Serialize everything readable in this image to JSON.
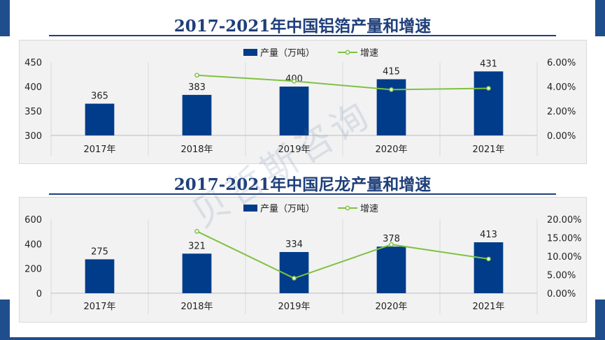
{
  "watermark": "贝哲斯咨询",
  "charts": [
    {
      "title": "2017-2021年中国铝箔产量和增速",
      "chart_data": {
        "type": "bar",
        "categories": [
          "2017年",
          "2018年",
          "2019年",
          "2020年",
          "2021年"
        ],
        "series": [
          {
            "name": "产量（万吨）",
            "type": "bar",
            "axis": "left",
            "values": [
              365,
              383,
              400,
              415,
              431
            ],
            "color": "#003c8a"
          },
          {
            "name": "增速",
            "type": "line",
            "axis": "right",
            "values": [
              null,
              4.93,
              4.44,
              3.75,
              3.86
            ],
            "color": "#7fc241"
          }
        ],
        "y_left": {
          "min": 300,
          "max": 450,
          "ticks": [
            "300",
            "350",
            "400",
            "450"
          ]
        },
        "y_right": {
          "min": 0,
          "max": 6,
          "ticks": [
            "0.00%",
            "2.00%",
            "4.00%",
            "6.00%"
          ]
        },
        "data_labels": [
          "365",
          "383",
          "400",
          "415",
          "431"
        ],
        "grid": "vertical",
        "legend": "top-center"
      }
    },
    {
      "title": "2017-2021年中国尼龙产量和增速",
      "chart_data": {
        "type": "bar",
        "categories": [
          "2017年",
          "2018年",
          "2019年",
          "2020年",
          "2021年"
        ],
        "series": [
          {
            "name": "产量（万吨）",
            "type": "bar",
            "axis": "left",
            "values": [
              275,
              321,
              334,
              378,
              413
            ],
            "color": "#003c8a"
          },
          {
            "name": "增速",
            "type": "line",
            "axis": "right",
            "values": [
              null,
              16.73,
              4.05,
              13.17,
              9.26
            ],
            "color": "#7fc241"
          }
        ],
        "y_left": {
          "min": 0,
          "max": 600,
          "ticks": [
            "0",
            "200",
            "400",
            "600"
          ]
        },
        "y_right": {
          "min": 0,
          "max": 20,
          "ticks": [
            "0.00%",
            "5.00%",
            "10.00%",
            "15.00%",
            "20.00%"
          ]
        },
        "data_labels": [
          "275",
          "321",
          "334",
          "378",
          "413"
        ],
        "grid": "vertical",
        "legend": "top-center"
      }
    }
  ]
}
